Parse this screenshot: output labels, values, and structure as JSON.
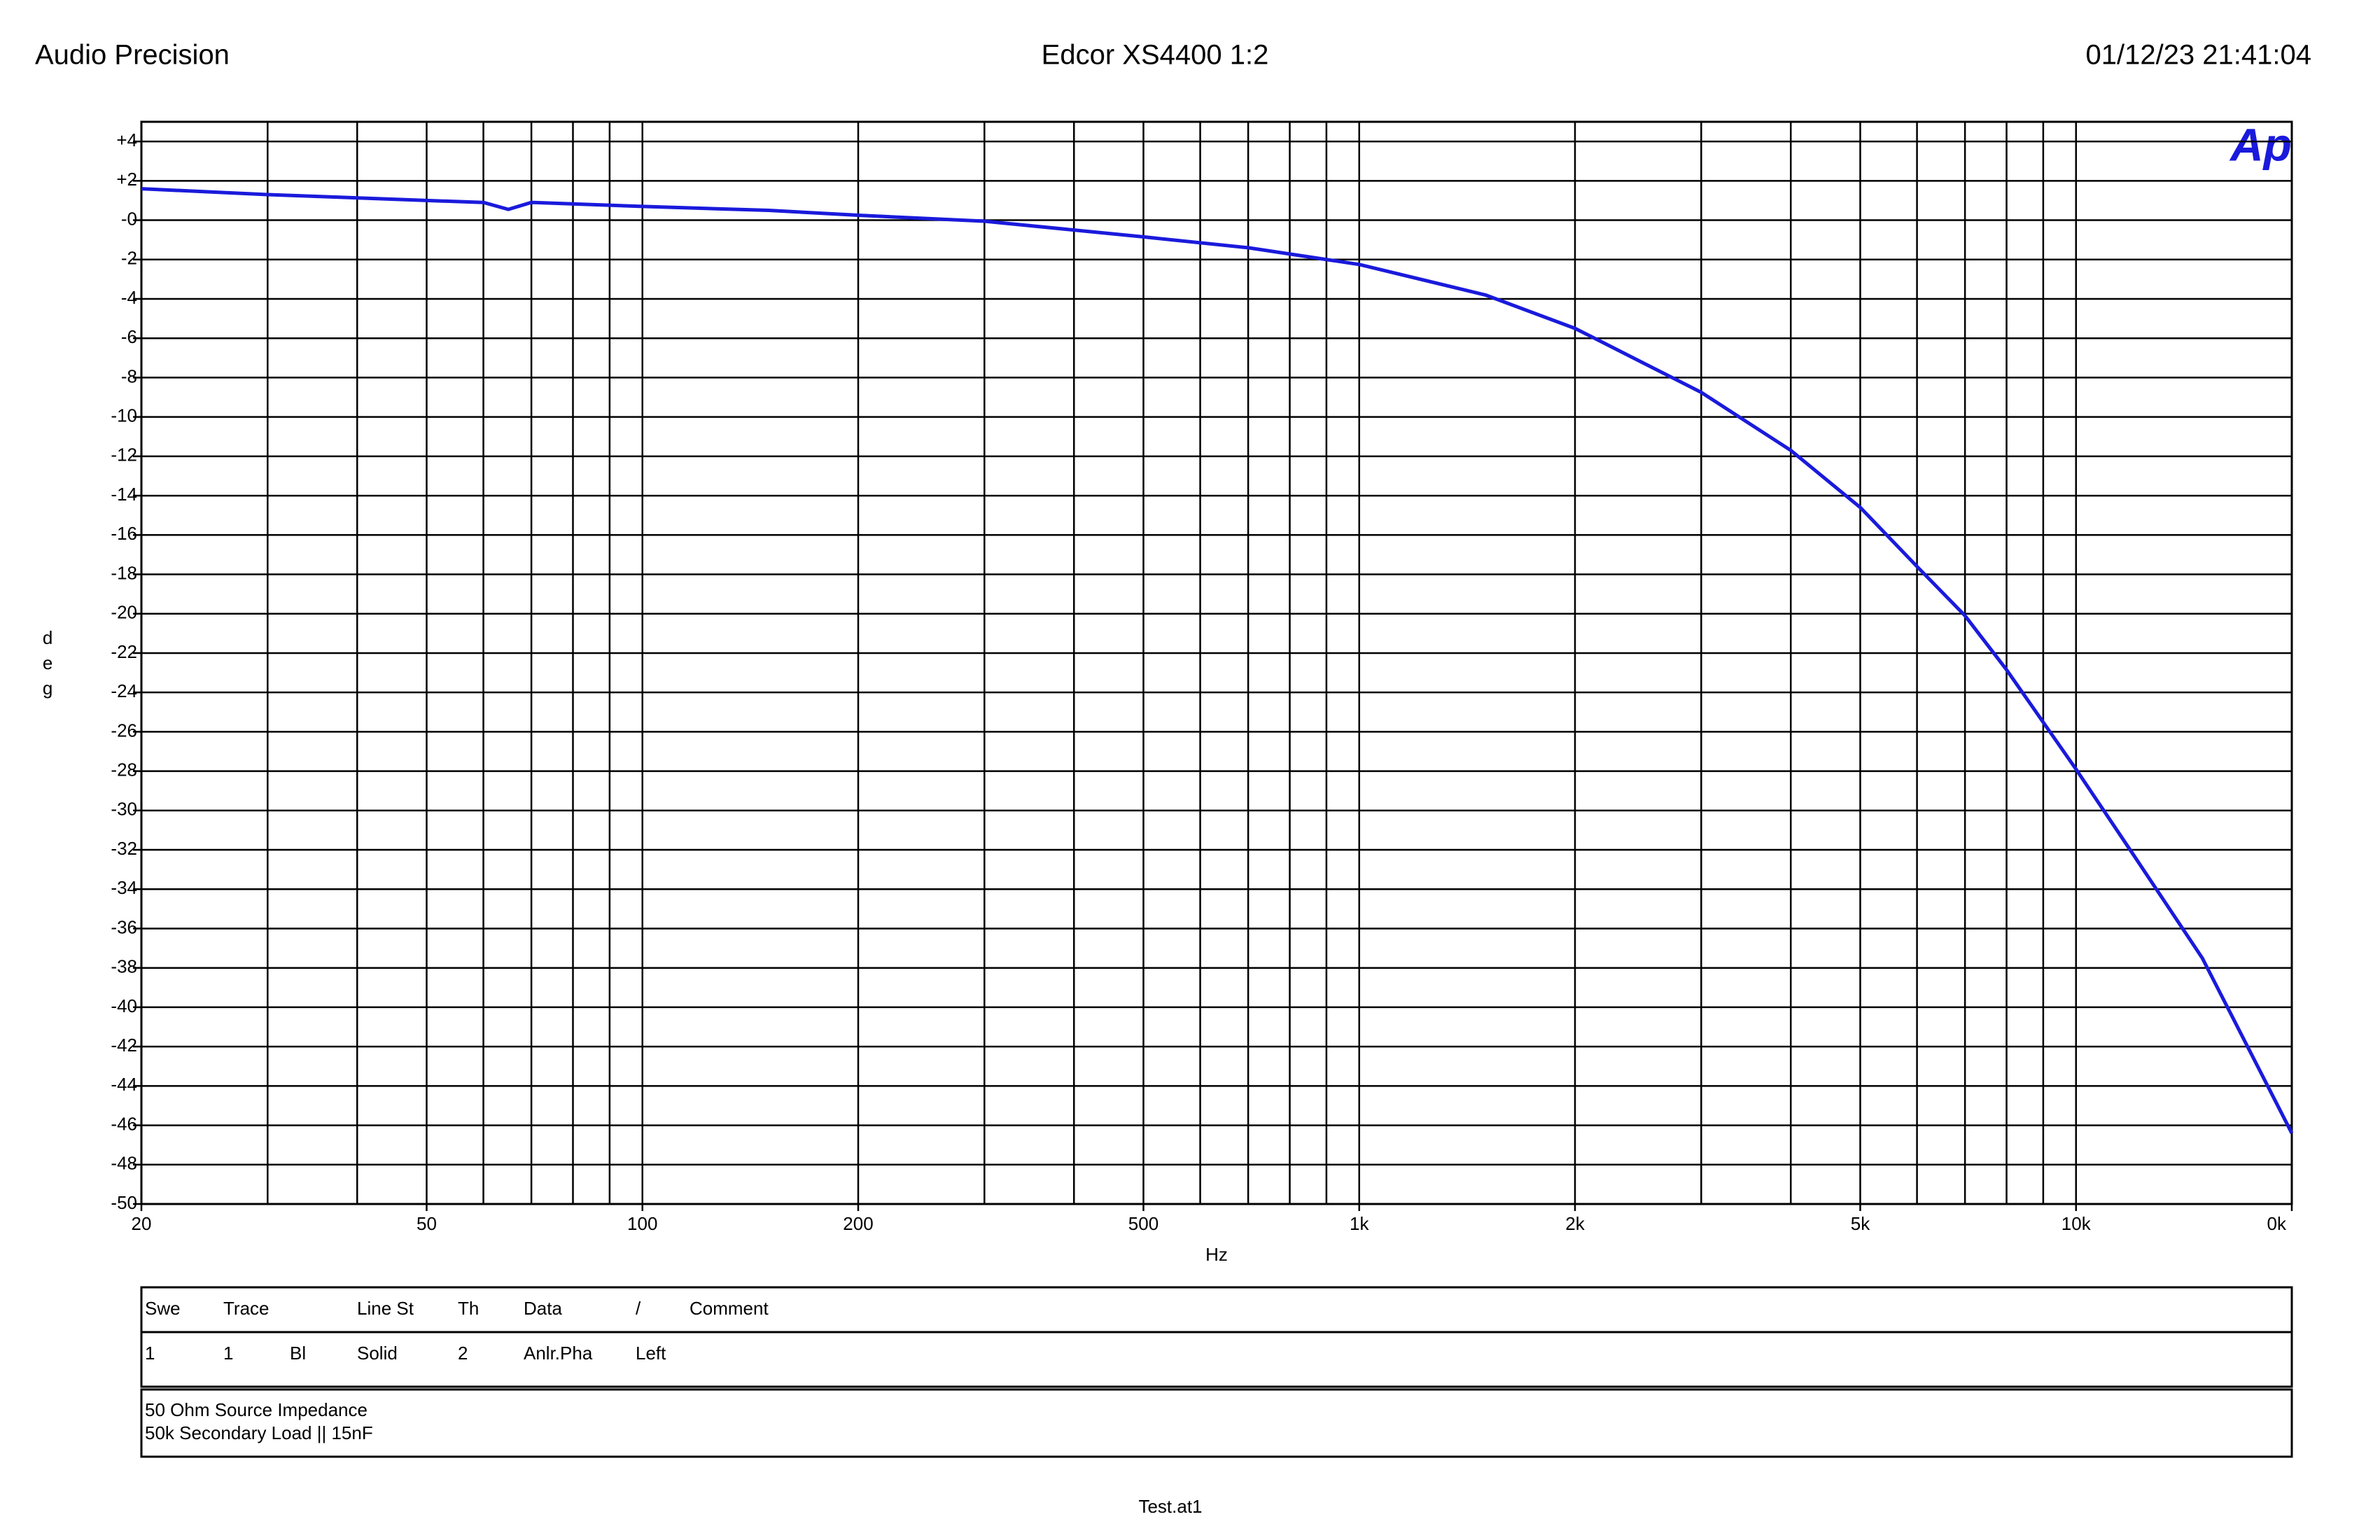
{
  "header": {
    "left": "Audio Precision",
    "title": "Edcor XS4400 1:2",
    "date": "01/12/23 21:41:04"
  },
  "chart_data": {
    "type": "line",
    "logo": "Ap",
    "y_label": "deg",
    "x_label": "Hz",
    "xscale": "log",
    "xlim": [
      20,
      20000
    ],
    "ylim": [
      -50,
      5
    ],
    "grid": true,
    "xticks": [
      20,
      50,
      100,
      200,
      500,
      {
        "value": 1000,
        "label": "1k"
      },
      {
        "value": 2000,
        "label": "2k"
      },
      {
        "value": 5000,
        "label": "5k"
      },
      {
        "value": 10000,
        "label": "10k"
      },
      {
        "value": 20000,
        "label": "0k"
      }
    ],
    "xgrid": [
      30,
      40,
      50,
      60,
      70,
      80,
      90,
      100,
      200,
      300,
      400,
      500,
      600,
      700,
      800,
      900,
      1000,
      2000,
      3000,
      4000,
      5000,
      6000,
      7000,
      8000,
      9000,
      10000
    ],
    "yticks": [
      {
        "value": 4,
        "label": "+4"
      },
      {
        "value": 2,
        "label": "+2"
      },
      {
        "value": 0,
        "label": "-0"
      },
      -2,
      -4,
      -6,
      -8,
      -10,
      -12,
      -14,
      -16,
      -18,
      -20,
      -22,
      -24,
      -26,
      -28,
      -30,
      -32,
      -34,
      -36,
      -38,
      -40,
      -42,
      -44,
      -46,
      -48,
      -50
    ],
    "x": [
      20,
      30,
      50,
      60,
      65,
      70,
      100,
      150,
      200,
      300,
      400,
      500,
      700,
      1000,
      1500,
      2000,
      3000,
      4000,
      5000,
      6000,
      7000,
      8000,
      10000,
      12000,
      15000,
      20000
    ],
    "series": [
      {
        "name": "1",
        "color": "#1a1adc",
        "values": [
          1.6,
          1.3,
          1.0,
          0.9,
          0.55,
          0.9,
          0.7,
          0.5,
          0.25,
          -0.05,
          -0.5,
          -0.85,
          -1.4,
          -2.25,
          -3.8,
          -5.5,
          -8.75,
          -11.7,
          -14.6,
          -17.6,
          -20.1,
          -22.85,
          -27.9,
          -32.2,
          -37.5,
          -46.4
        ]
      }
    ]
  },
  "table": {
    "header": [
      "Swe",
      "Trace",
      "Line St",
      "Th",
      "Data",
      "/",
      "Comment"
    ],
    "rows": [
      [
        "1",
        "1",
        "Bl",
        "Solid",
        "2",
        "Anlr.Pha",
        "Left"
      ]
    ]
  },
  "notes": [
    "50 Ohm Source Impedance",
    "50k Secondary Load || 15nF"
  ],
  "footer": "Test.at1"
}
